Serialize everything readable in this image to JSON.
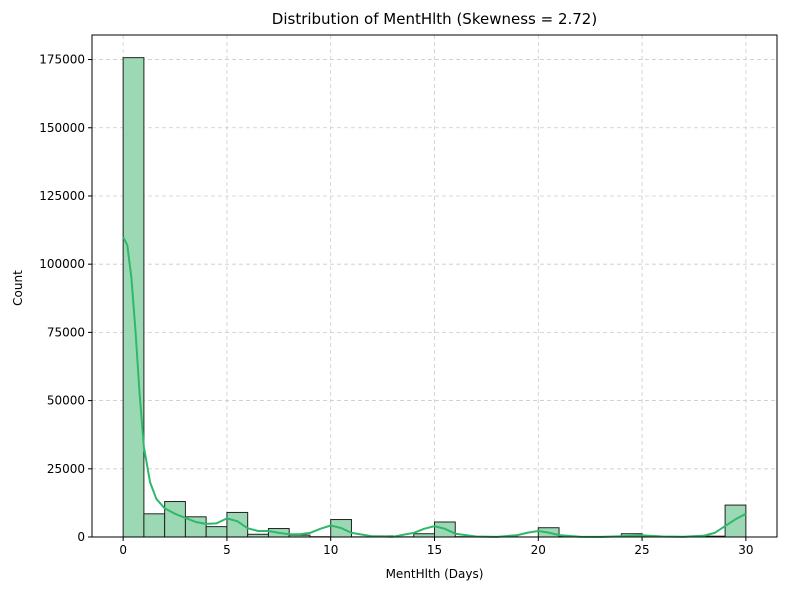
{
  "chart_data": {
    "type": "bar",
    "title": "Distribution of MentHlth (Skewness = 2.72)",
    "xlabel": "MentHlth (Days)",
    "ylabel": "Count",
    "xlim": [
      -1.5,
      31.5
    ],
    "ylim": [
      0,
      184000
    ],
    "xticks": [
      0,
      5,
      10,
      15,
      20,
      25,
      30
    ],
    "yticks": [
      0,
      25000,
      50000,
      75000,
      100000,
      125000,
      150000,
      175000
    ],
    "grid": true,
    "bin_width": 1,
    "bins": [
      {
        "x0": 0,
        "value": 175700
      },
      {
        "x0": 1,
        "value": 8500
      },
      {
        "x0": 2,
        "value": 13000
      },
      {
        "x0": 3,
        "value": 7400
      },
      {
        "x0": 4,
        "value": 3800
      },
      {
        "x0": 5,
        "value": 9000
      },
      {
        "x0": 6,
        "value": 1000
      },
      {
        "x0": 7,
        "value": 3100
      },
      {
        "x0": 8,
        "value": 700
      },
      {
        "x0": 9,
        "value": 100
      },
      {
        "x0": 10,
        "value": 6400
      },
      {
        "x0": 11,
        "value": 50
      },
      {
        "x0": 12,
        "value": 400
      },
      {
        "x0": 13,
        "value": 50
      },
      {
        "x0": 14,
        "value": 1200
      },
      {
        "x0": 15,
        "value": 5500
      },
      {
        "x0": 16,
        "value": 100
      },
      {
        "x0": 17,
        "value": 50
      },
      {
        "x0": 18,
        "value": 100
      },
      {
        "x0": 19,
        "value": 20
      },
      {
        "x0": 20,
        "value": 3400
      },
      {
        "x0": 21,
        "value": 200
      },
      {
        "x0": 22,
        "value": 70
      },
      {
        "x0": 23,
        "value": 40
      },
      {
        "x0": 24,
        "value": 1200
      },
      {
        "x0": 25,
        "value": 30
      },
      {
        "x0": 26,
        "value": 50
      },
      {
        "x0": 27,
        "value": 80
      },
      {
        "x0": 28,
        "value": 300
      },
      {
        "x0": 29,
        "value": 11700
      }
    ],
    "kde": {
      "x": [
        0,
        0.2,
        0.4,
        0.6,
        0.8,
        1.0,
        1.3,
        1.6,
        2.0,
        2.5,
        3.0,
        3.5,
        4.0,
        4.5,
        5.0,
        5.5,
        6.0,
        6.5,
        7.0,
        7.5,
        8.0,
        8.5,
        9.0,
        9.5,
        10.0,
        10.5,
        11.0,
        12.0,
        13.0,
        14.0,
        14.5,
        15.0,
        15.5,
        16.0,
        17.0,
        18.0,
        19.0,
        19.5,
        20.0,
        20.5,
        21.0,
        22.0,
        23.0,
        24.0,
        25.0,
        26.0,
        27.0,
        28.0,
        28.5,
        29.0,
        29.5,
        30.0
      ],
      "y": [
        110000,
        107000,
        95000,
        75000,
        52000,
        33000,
        20000,
        14000,
        10500,
        8500,
        7000,
        5500,
        4800,
        5000,
        6800,
        5800,
        3200,
        2200,
        2200,
        1500,
        1000,
        1000,
        1500,
        3000,
        4200,
        3300,
        1500,
        300,
        100,
        1500,
        3000,
        4000,
        3000,
        1200,
        200,
        50,
        700,
        1600,
        2200,
        1600,
        700,
        100,
        50,
        300,
        600,
        200,
        100,
        500,
        1500,
        4000,
        6500,
        8500
      ]
    },
    "colors": {
      "bar_fill": "#9dd8b5",
      "bar_edge": "#222222",
      "kde_line": "#2db86a",
      "grid": "#cccccc"
    }
  }
}
